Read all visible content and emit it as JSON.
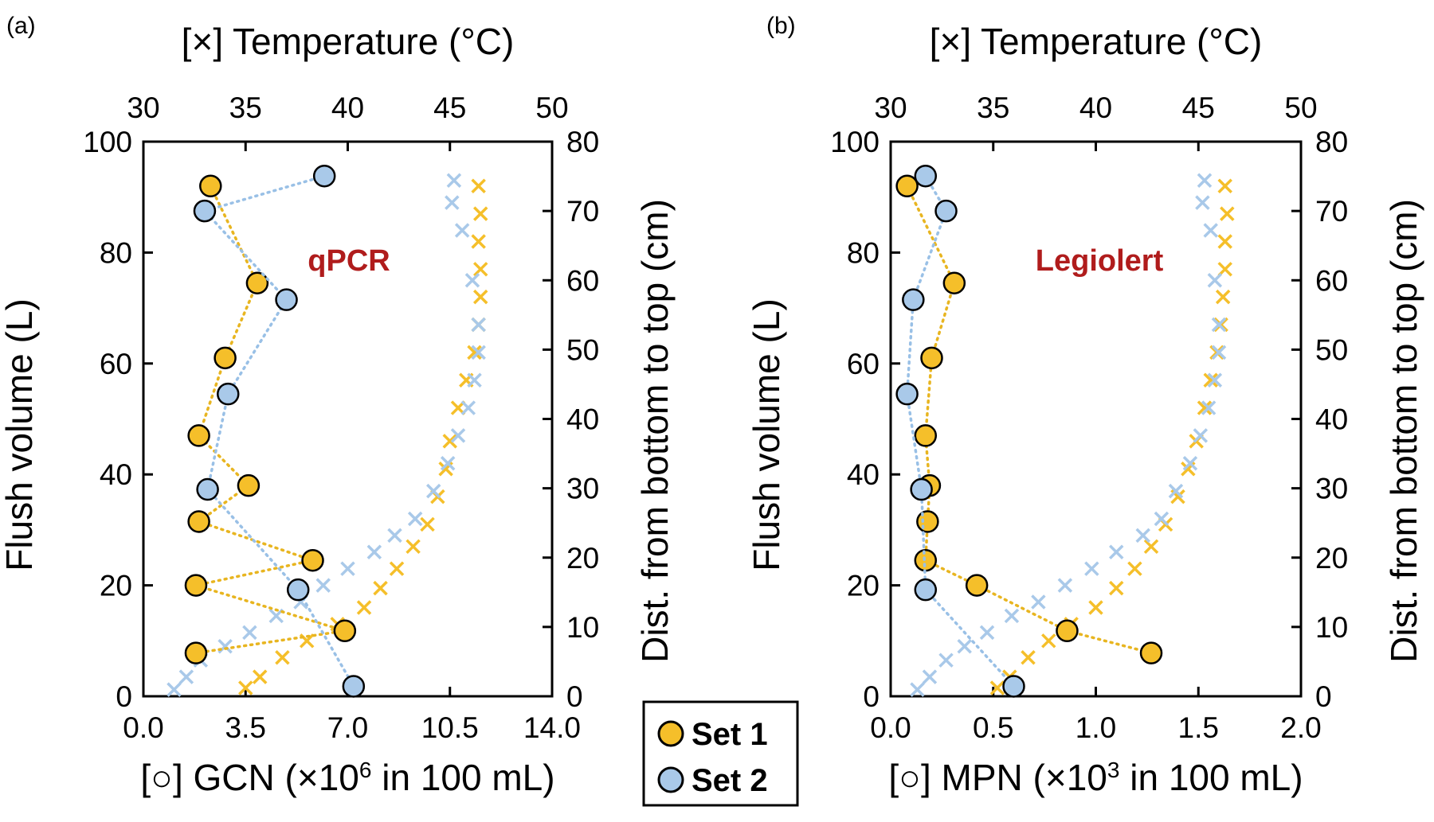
{
  "colors": {
    "set1": "#f5bf2a",
    "set2": "#a9c9e9",
    "set1_line": "#e8b520",
    "set2_line": "#99c0e6",
    "label_red": "#b01c1c"
  },
  "legend": {
    "items": [
      "Set 1",
      "Set 2"
    ]
  },
  "chart_data": [
    {
      "type": "scatter",
      "panel_label": "(a)",
      "annotation": "qPCR",
      "xlabel_bottom": {
        "prefix": "[○] GCN (×10",
        "sup": "6",
        "suffix": " in 100 mL)"
      },
      "xlabel_top": "[×] Temperature (°C)",
      "ylabel_left": "Flush volume (L)",
      "ylabel_right": "Dist. from bottom to top (cm)",
      "xlim_bottom": [
        0,
        14
      ],
      "xticks_bottom": [
        "0.0",
        "3.5",
        "7.0",
        "10.5",
        "14.0"
      ],
      "xlim_top": [
        30,
        50
      ],
      "xticks_top": [
        "30",
        "35",
        "40",
        "45",
        "50"
      ],
      "ylim_left": [
        0,
        100
      ],
      "yticks_left": [
        "0",
        "20",
        "40",
        "60",
        "80",
        "100"
      ],
      "ylim_right": [
        0,
        80
      ],
      "yticks_right": [
        "0",
        "10",
        "20",
        "30",
        "40",
        "50",
        "60",
        "70",
        "80"
      ],
      "series": [
        {
          "name": "Set 1",
          "x": [
            2.3,
            3.9,
            2.8,
            1.9,
            3.6,
            1.9,
            5.8,
            1.8,
            6.9,
            1.8
          ],
          "y": [
            92,
            74.5,
            61,
            47,
            38,
            31.5,
            24.5,
            20,
            11.8,
            7.8
          ]
        },
        {
          "name": "Set 2",
          "x": [
            6.2,
            2.1,
            4.9,
            2.9,
            2.2,
            5.3,
            7.2
          ],
          "y": [
            93.8,
            87.5,
            71.5,
            54.5,
            37.3,
            19.2,
            1.8
          ]
        }
      ],
      "temperature_series": [
        {
          "name": "Set 1",
          "temp": [
            35.0,
            35.7,
            36.8,
            38.0,
            39.5,
            40.8,
            41.6,
            42.4,
            43.2,
            43.9,
            44.4,
            44.8,
            45.0,
            45.4,
            45.8,
            46.2,
            46.4,
            46.5,
            46.5,
            46.4,
            46.5,
            46.4
          ],
          "y": [
            1.5,
            3.5,
            7,
            10,
            13,
            16,
            19.5,
            23,
            27,
            31,
            36,
            41,
            46,
            52,
            57,
            62,
            67,
            72,
            77,
            82,
            87,
            92
          ]
        },
        {
          "name": "Set 2",
          "temp": [
            31.5,
            32.1,
            32.8,
            34.0,
            35.2,
            36.5,
            37.7,
            38.8,
            40.0,
            41.3,
            42.3,
            43.3,
            44.2,
            44.9,
            45.4,
            45.9,
            46.2,
            46.4,
            46.4,
            46.1,
            45.6,
            45.1,
            45.2
          ],
          "y": [
            1.2,
            3.5,
            6.5,
            9,
            11.5,
            14.5,
            17,
            20,
            23,
            26,
            29,
            32,
            37,
            42,
            47,
            52,
            57,
            62,
            67,
            75,
            84,
            89,
            93
          ]
        }
      ]
    },
    {
      "type": "scatter",
      "panel_label": "(b)",
      "annotation": "Legiolert",
      "xlabel_bottom": {
        "prefix": "[○] MPN (×10",
        "sup": "3",
        "suffix": " in 100 mL)"
      },
      "xlabel_top": "[×] Temperature (°C)",
      "ylabel_left": "Flush volume (L)",
      "ylabel_right": "Dist. from bottom to top (cm)",
      "xlim_bottom": [
        0,
        2
      ],
      "xticks_bottom": [
        "0.0",
        "0.5",
        "1.0",
        "1.5",
        "2.0"
      ],
      "xlim_top": [
        30,
        50
      ],
      "xticks_top": [
        "30",
        "35",
        "40",
        "45",
        "50"
      ],
      "ylim_left": [
        0,
        100
      ],
      "yticks_left": [
        "0",
        "20",
        "40",
        "60",
        "80",
        "100"
      ],
      "ylim_right": [
        0,
        80
      ],
      "yticks_right": [
        "0",
        "10",
        "20",
        "30",
        "40",
        "50",
        "60",
        "70",
        "80"
      ],
      "series": [
        {
          "name": "Set 1",
          "x": [
            0.08,
            0.31,
            0.2,
            0.17,
            0.19,
            0.18,
            0.17,
            0.42,
            0.86,
            1.27
          ],
          "y": [
            92,
            74.5,
            61,
            47,
            38,
            31.5,
            24.5,
            20,
            11.8,
            7.8
          ]
        },
        {
          "name": "Set 2",
          "x": [
            0.17,
            0.27,
            0.11,
            0.08,
            0.15,
            0.17,
            0.6
          ],
          "y": [
            93.8,
            87.5,
            71.5,
            54.5,
            37.3,
            19.2,
            1.8
          ]
        }
      ],
      "temperature_series": [
        {
          "name": "Set 1",
          "temp": [
            35.2,
            35.8,
            36.7,
            37.7,
            38.8,
            40.0,
            41.0,
            41.9,
            42.7,
            43.4,
            44.0,
            44.5,
            44.9,
            45.3,
            45.6,
            45.9,
            46.1,
            46.2,
            46.3,
            46.3,
            46.4,
            46.3
          ],
          "y": [
            1.5,
            3.5,
            7,
            10,
            13,
            16,
            19.5,
            23,
            27,
            31,
            36,
            41,
            46,
            52,
            57,
            62,
            67,
            72,
            77,
            82,
            87,
            92
          ]
        },
        {
          "name": "Set 2",
          "temp": [
            31.3,
            31.9,
            32.7,
            33.6,
            34.7,
            35.9,
            37.2,
            38.5,
            39.8,
            41.0,
            42.3,
            43.2,
            43.9,
            44.6,
            45.1,
            45.5,
            45.8,
            46.0,
            46.0,
            45.8,
            45.6,
            45.2,
            45.3
          ],
          "y": [
            1.2,
            3.5,
            6.5,
            9,
            11.5,
            14.5,
            17,
            20,
            23,
            26,
            29,
            32,
            37,
            42,
            47,
            52,
            57,
            62,
            67,
            75,
            84,
            89,
            93
          ]
        }
      ]
    }
  ]
}
